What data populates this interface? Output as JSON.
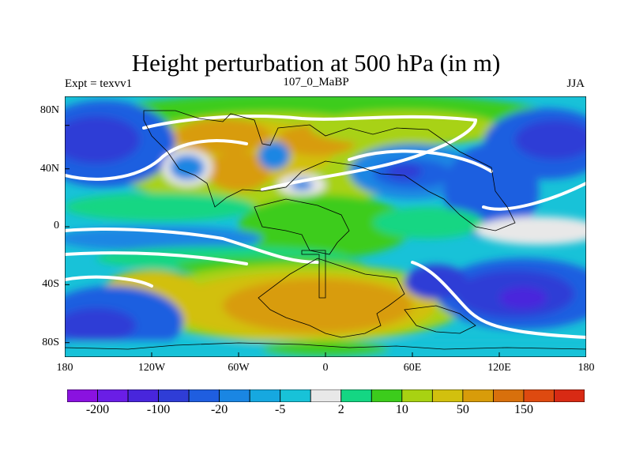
{
  "title": "Height perturbation at 500 hPa (in m)",
  "subtitle_left": "Expt = texvv1",
  "subtitle_center": "107_0_MaBP",
  "subtitle_right": "JJA",
  "map": {
    "projection": "cylindrical-equidistant",
    "lon_range": [
      -180,
      180
    ],
    "lat_range": [
      -90,
      90
    ],
    "y_ticks": [
      "80N",
      "40N",
      "0",
      "40S",
      "80S"
    ],
    "x_ticks": [
      "180",
      "120W",
      "60W",
      "0",
      "60E",
      "120E",
      "180"
    ],
    "overlay": "paleo-coastline outlines"
  },
  "colorbar": {
    "colors": [
      "#8a12e0",
      "#6a1ee6",
      "#4826dc",
      "#2f3dd6",
      "#1f5ee0",
      "#1a86e3",
      "#16a8e0",
      "#18c2d8",
      "#e8e8e8",
      "#14d683",
      "#3ccc1c",
      "#a8d212",
      "#d2c00e",
      "#d89c0a",
      "#d8700c",
      "#de4a10",
      "#d82a14"
    ],
    "labels": [
      "-200",
      "-100",
      "-20",
      "-5",
      "2",
      "10",
      "50",
      "150"
    ]
  }
}
